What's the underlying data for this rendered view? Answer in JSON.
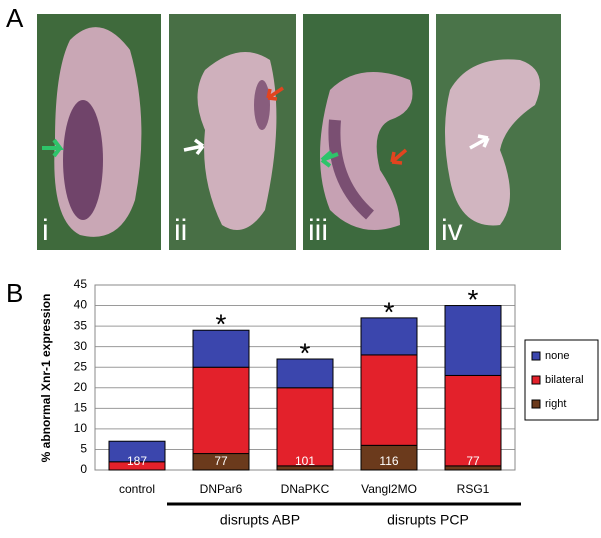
{
  "panel_labels": {
    "top": "A",
    "bottom": "B"
  },
  "photos": [
    {
      "label": "i"
    },
    {
      "label": "ii"
    },
    {
      "label": "iii"
    },
    {
      "label": "iv"
    }
  ],
  "chart_data": {
    "type": "stacked_bar",
    "y_label": "% abnormal Xnr-1 expression",
    "categories": [
      "control",
      "DNPar6",
      "DNaPKC",
      "Vangl2MO",
      "RSG1"
    ],
    "series": [
      {
        "name": "right",
        "color": "#6b3a1c",
        "values": [
          0,
          4,
          1,
          6,
          1
        ]
      },
      {
        "name": "bilateral",
        "color": "#e3212b",
        "values": [
          2,
          21,
          19,
          22,
          22
        ]
      },
      {
        "name": "none",
        "color": "#3b46ad",
        "values": [
          5,
          9,
          7,
          9,
          17
        ]
      }
    ],
    "n_labels": [
      187,
      77,
      101,
      116,
      77
    ],
    "significance": [
      null,
      "*",
      "*",
      "*",
      "*"
    ],
    "groups": [
      {
        "label": "disrupts ABP"
      },
      {
        "label": "disrupts PCP"
      }
    ],
    "ylim": [
      0,
      45
    ],
    "yticks": [
      0,
      5,
      10,
      15,
      20,
      25,
      30,
      35,
      40,
      45
    ],
    "grid": true
  }
}
